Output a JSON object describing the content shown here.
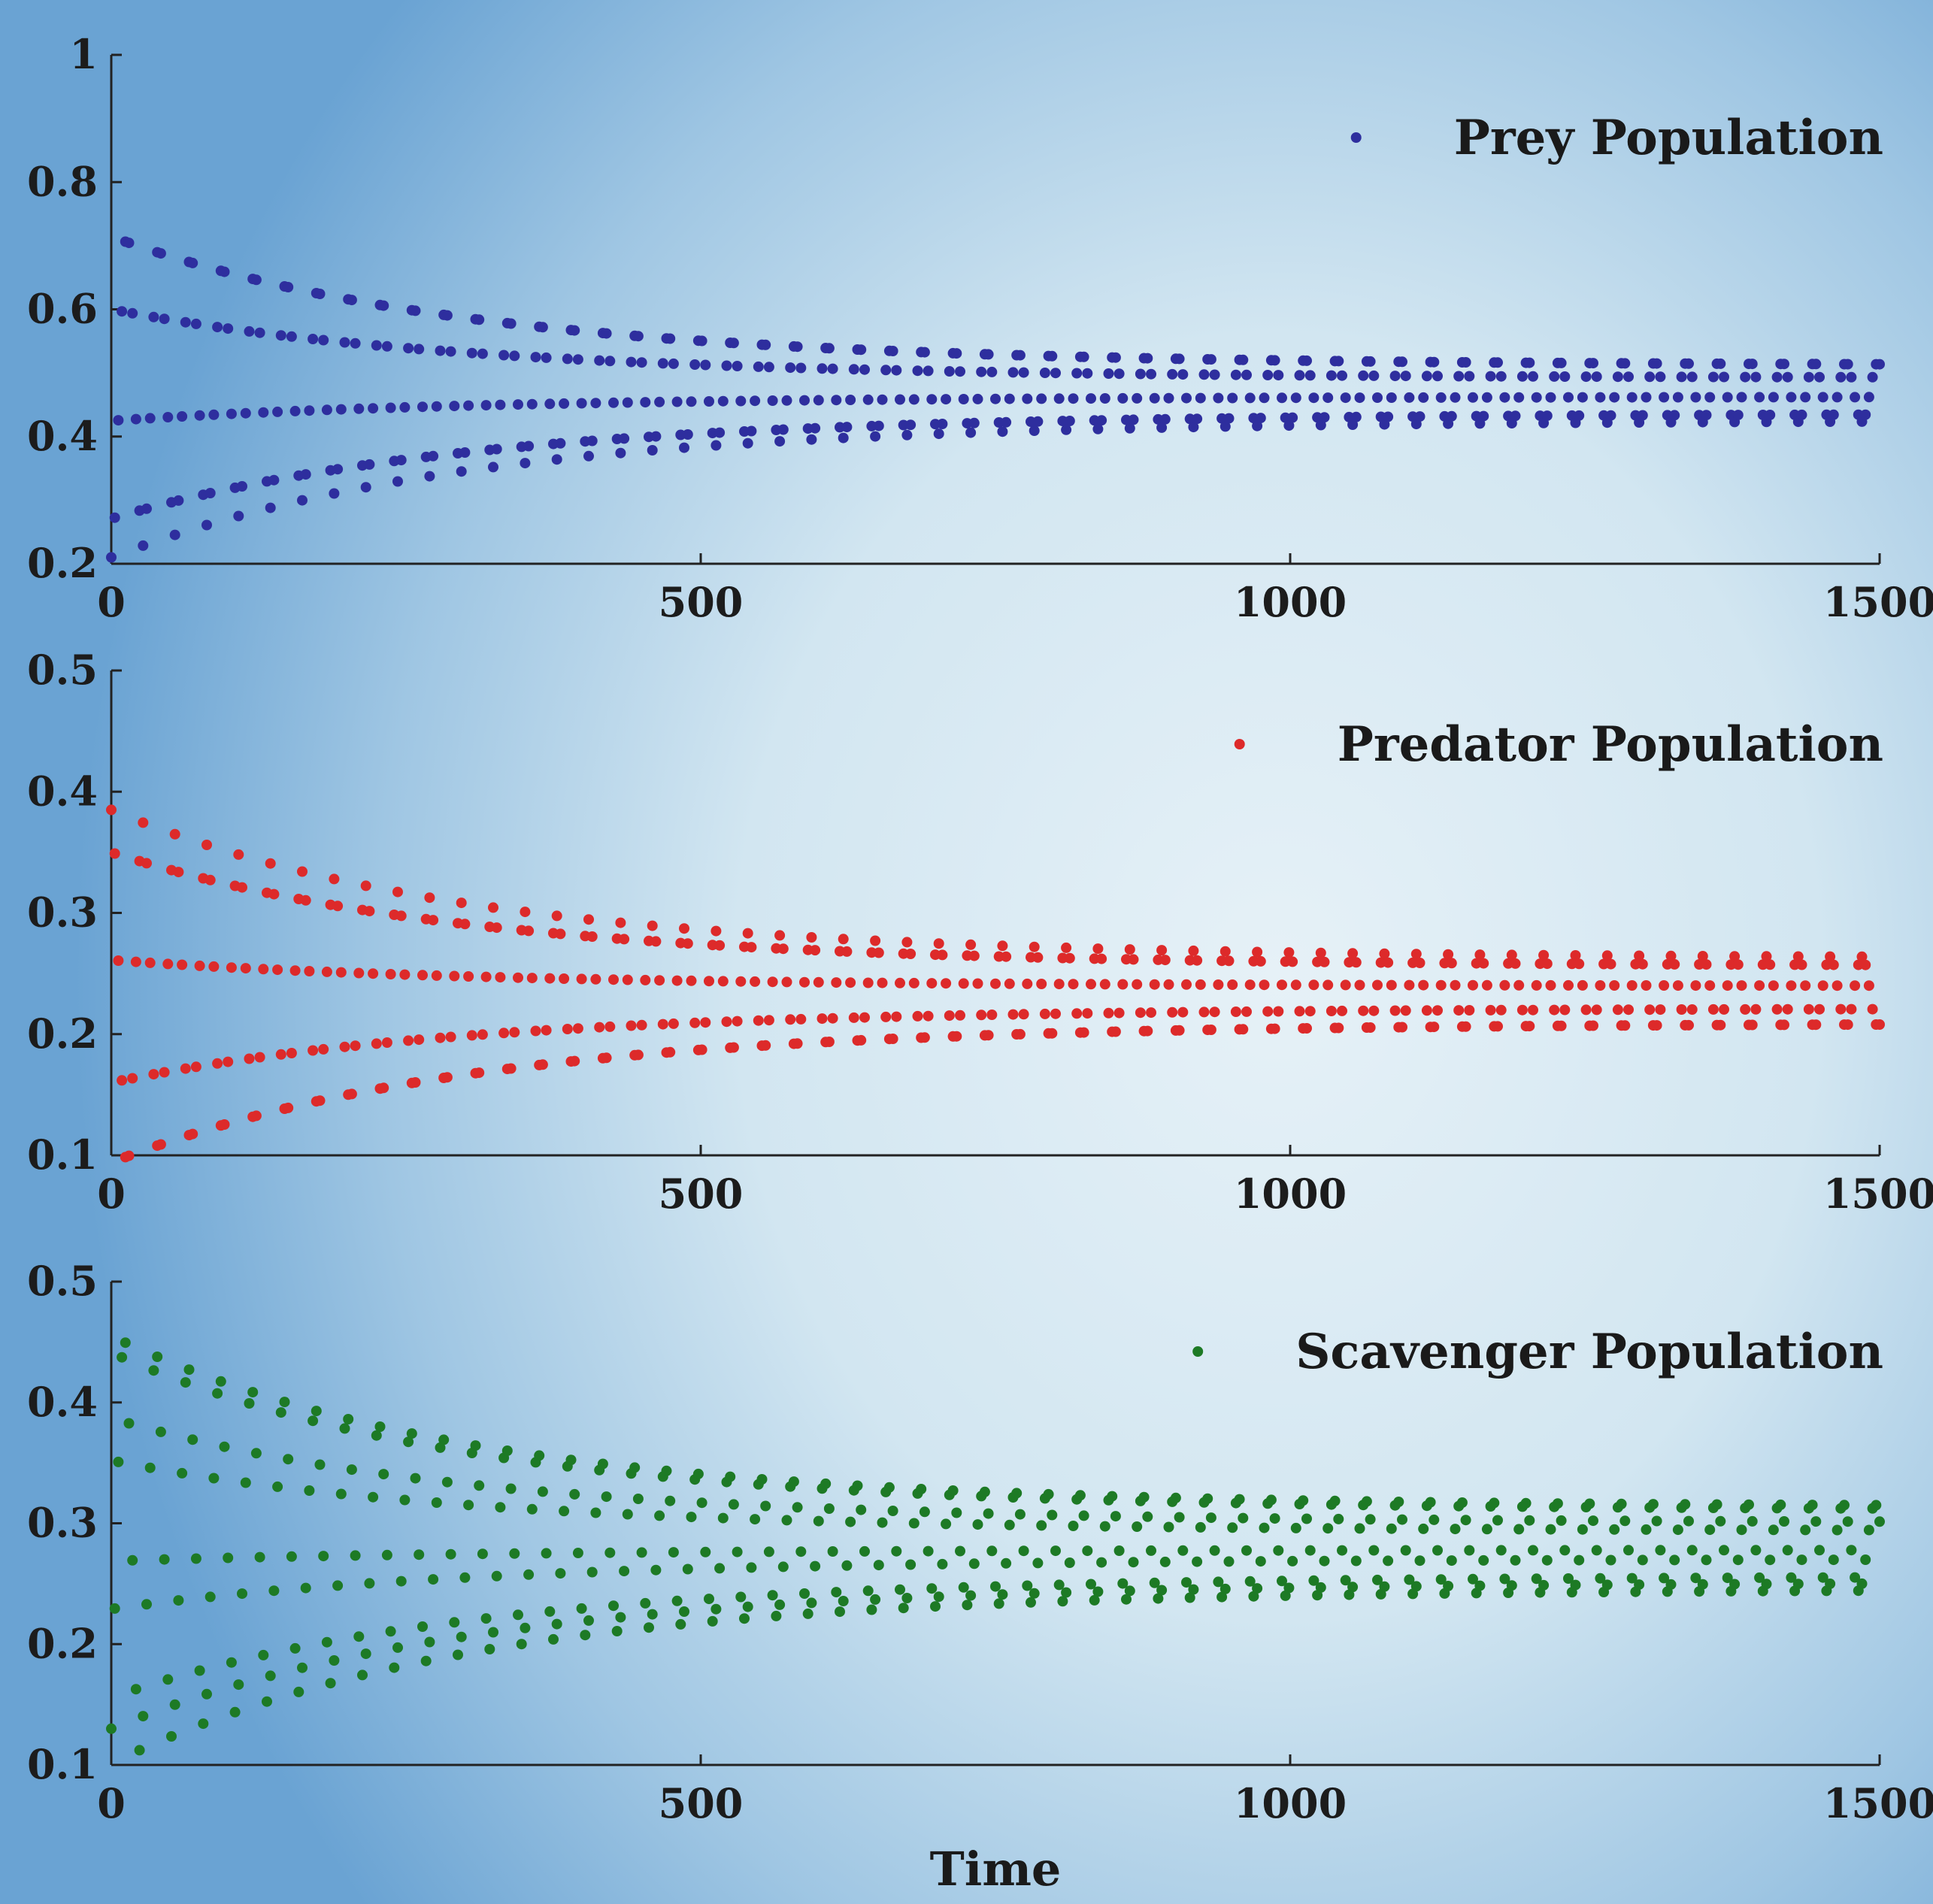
{
  "chart_data": [
    {
      "type": "scatter",
      "xlim": [
        0,
        1500
      ],
      "ylim": [
        0.2,
        1
      ],
      "x_ticks": [
        "0",
        "500",
        "1000",
        "1500"
      ],
      "y_ticks": [
        "0.2",
        "0.4",
        "0.6",
        "0.8",
        "1"
      ],
      "legend_position": "top-right",
      "grid": false,
      "series": [
        {
          "name": "Prey Population",
          "color": "#2e2e9e",
          "equilibrium": 0.47,
          "initial": 0.2,
          "amplitude_start": 0.26,
          "amplitude_end": 0.045,
          "decay_time": 300,
          "period": 27,
          "x_start": 0,
          "x_end": 1500,
          "x_step": 3
        }
      ]
    },
    {
      "type": "scatter",
      "xlim": [
        0,
        1500
      ],
      "ylim": [
        0.1,
        0.5
      ],
      "x_ticks": [
        "0",
        "500",
        "1000",
        "1500"
      ],
      "y_ticks": [
        "0.1",
        "0.2",
        "0.3",
        "0.4",
        "0.5"
      ],
      "legend_position": "top-right",
      "grid": false,
      "series": [
        {
          "name": "Predator Population",
          "color": "#dd2a2a",
          "equilibrium": 0.235,
          "initial": 0.4,
          "amplitude_start": 0.15,
          "amplitude_end": 0.028,
          "decay_time": 300,
          "period": 27,
          "x_start": 0,
          "x_end": 1500,
          "x_step": 3
        }
      ]
    },
    {
      "type": "scatter",
      "xlim": [
        0,
        1500
      ],
      "ylim": [
        0.1,
        0.5
      ],
      "x_ticks": [
        "0",
        "500",
        "1000",
        "1500"
      ],
      "y_ticks": [
        "0.1",
        "0.2",
        "0.3",
        "0.4",
        "0.5"
      ],
      "xlabel": "Time",
      "legend_position": "top-right",
      "grid": false,
      "series": [
        {
          "name": "Scavenger Population",
          "color": "#1d7a25",
          "equilibrium": 0.28,
          "initial": 0.13,
          "amplitude_start": 0.18,
          "amplitude_end": 0.035,
          "decay_time": 300,
          "period": 27,
          "x_start": 0,
          "x_end": 1500,
          "x_step": 3
        }
      ]
    }
  ]
}
